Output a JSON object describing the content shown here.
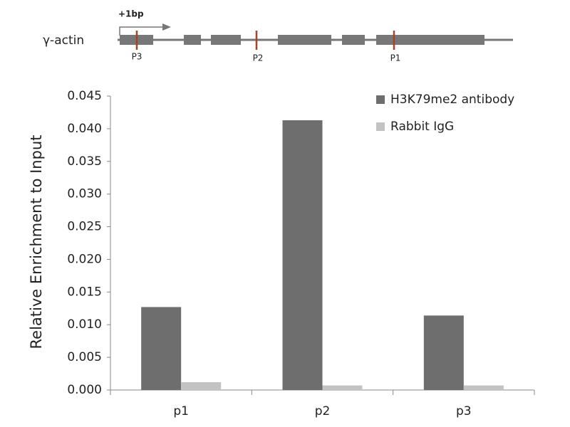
{
  "gene_diagram": {
    "label": "γ-actin",
    "start_label": "+1bp",
    "sites": [
      "P3",
      "P2",
      "P1"
    ]
  },
  "chart_data": {
    "type": "bar",
    "y_label": "Relative Enrichment to Input",
    "categories": [
      "p1",
      "p2",
      "p3"
    ],
    "series": [
      {
        "name": "H3K79me2 antibody",
        "color": "#6e6e6e",
        "values": [
          0.0127,
          0.0413,
          0.0114
        ]
      },
      {
        "name": "Rabbit IgG",
        "color": "#c3c3c3",
        "values": [
          0.0012,
          0.0007,
          0.0007
        ]
      }
    ],
    "ylim": [
      0,
      0.045
    ],
    "yticks": [
      {
        "value": 0,
        "label": "0.000"
      },
      {
        "value": 0.005,
        "label": "0.005"
      },
      {
        "value": 0.01,
        "label": "0.010"
      },
      {
        "value": 0.015,
        "label": "0.015"
      },
      {
        "value": 0.02,
        "label": "0.020"
      },
      {
        "value": 0.025,
        "label": "0.025"
      },
      {
        "value": 0.03,
        "label": "0.030"
      },
      {
        "value": 0.035,
        "label": "0.035"
      },
      {
        "value": 0.04,
        "label": "0.040"
      },
      {
        "value": 0.045,
        "label": "0.045"
      }
    ],
    "legend": "top-right"
  }
}
